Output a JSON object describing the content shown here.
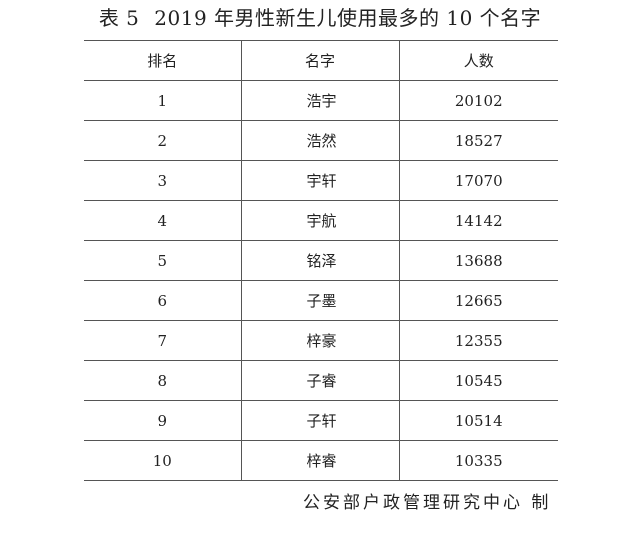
{
  "title": {
    "label": "表 5",
    "text": "2019 年男性新生儿使用最多的 10 个名字"
  },
  "table": {
    "headers": [
      "排名",
      "名字",
      "人数"
    ],
    "rows": [
      {
        "rank": "1",
        "name": "浩宇",
        "count": "20102"
      },
      {
        "rank": "2",
        "name": "浩然",
        "count": "18527"
      },
      {
        "rank": "3",
        "name": "宇轩",
        "count": "17070"
      },
      {
        "rank": "4",
        "name": "宇航",
        "count": "14142"
      },
      {
        "rank": "5",
        "name": "铭泽",
        "count": "13688"
      },
      {
        "rank": "6",
        "name": "子墨",
        "count": "12665"
      },
      {
        "rank": "7",
        "name": "梓豪",
        "count": "12355"
      },
      {
        "rank": "8",
        "name": "子睿",
        "count": "10545"
      },
      {
        "rank": "9",
        "name": "子轩",
        "count": "10514"
      },
      {
        "rank": "10",
        "name": "梓睿",
        "count": "10335"
      }
    ]
  },
  "footer": "公安部户政管理研究中心  制"
}
